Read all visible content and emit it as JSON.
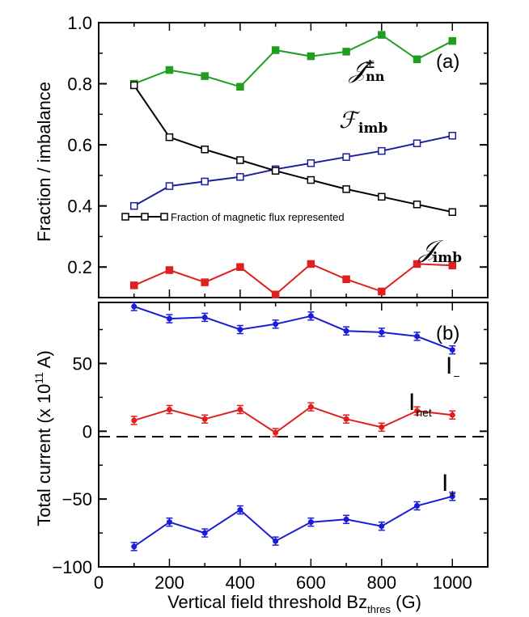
{
  "chart_data": [
    {
      "type": "line",
      "panel_label": "(a)",
      "ylabel": "Fraction / imbalance",
      "xlim": [
        0,
        1100
      ],
      "ylim": [
        0.1,
        1.0
      ],
      "yticks": [
        "0.2",
        "0.4",
        "0.6",
        "0.8",
        "1.0"
      ],
      "x": [
        100,
        200,
        300,
        400,
        500,
        600,
        700,
        800,
        900,
        1000
      ],
      "series": [
        {
          "name": "J_nn±",
          "label_main": "𝒥",
          "label_sub": "nn",
          "label_sup": "±",
          "color": "#1f9e1f",
          "marker": "filled-square",
          "values": [
            0.8,
            0.845,
            0.825,
            0.79,
            0.91,
            0.89,
            0.905,
            0.96,
            0.88,
            0.94
          ]
        },
        {
          "name": "F_imb",
          "label_main": "ℱ",
          "label_sub": "imb",
          "color": "#1c1ca0",
          "marker": "open-square",
          "values": [
            0.4,
            0.465,
            0.48,
            0.495,
            0.52,
            0.54,
            0.56,
            0.58,
            0.605,
            0.63
          ]
        },
        {
          "name": "Fraction of magnetic flux represented",
          "color": "#000000",
          "marker": "open-square",
          "values": [
            0.795,
            0.625,
            0.585,
            0.55,
            0.515,
            0.485,
            0.455,
            0.43,
            0.405,
            0.38
          ]
        },
        {
          "name": "J_imb",
          "label_main": "𝒥",
          "label_sub": "imb",
          "color": "#e02020",
          "marker": "filled-square",
          "values": [
            0.14,
            0.19,
            0.15,
            0.2,
            0.11,
            0.21,
            0.16,
            0.12,
            0.21,
            0.205
          ]
        }
      ],
      "legend_text": "Fraction of magnetic flux represented"
    },
    {
      "type": "line",
      "panel_label": "(b)",
      "ylabel": "Total current (x 10",
      "ylabel_sup": "11",
      "ylabel_end": " A)",
      "xlabel": "Vertical field threshold Bz",
      "xlabel_sub": "thres",
      "xlabel_end": " (G)",
      "xlim": [
        0,
        1100
      ],
      "ylim": [
        -100,
        95
      ],
      "yticks": [
        "−100",
        "−50",
        "0",
        "50"
      ],
      "xticks": [
        "0",
        "200",
        "400",
        "600",
        "800",
        "1000"
      ],
      "x": [
        100,
        200,
        300,
        400,
        500,
        600,
        700,
        800,
        900,
        1000
      ],
      "series": [
        {
          "name": "I_-",
          "label_main": "I",
          "label_sub": "−",
          "color": "#1c1cd8",
          "values": [
            92,
            83,
            84,
            75,
            79,
            85,
            74,
            73,
            70,
            60
          ]
        },
        {
          "name": "I_net",
          "label_main": "I",
          "label_sub": "net",
          "color": "#e02020",
          "values": [
            8,
            16,
            9,
            16,
            -1,
            18,
            9,
            3,
            15,
            12
          ]
        },
        {
          "name": "I_+",
          "label_main": "I",
          "label_sub": "+",
          "color": "#1c1cd8",
          "values": [
            -85,
            -67,
            -75,
            -58,
            -81,
            -67,
            -65,
            -70,
            -55,
            -48
          ]
        }
      ]
    }
  ]
}
